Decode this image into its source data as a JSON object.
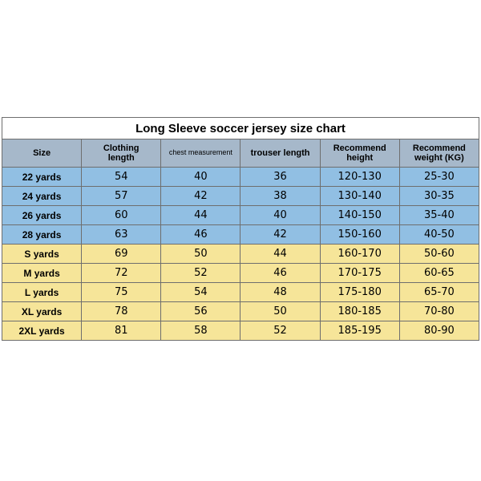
{
  "title": "Long Sleeve soccer jersey size chart",
  "columns": [
    "Size",
    "Clothing length",
    "chest measurement",
    "trouser length",
    "Recommend height",
    "Recommend weight (KG)"
  ],
  "header_bg": "#a6b8ca",
  "header_font_size_main": 11,
  "header_font_size_small": 9,
  "border_color": "#6e6e6e",
  "group_colors": {
    "kids": "#91bfe3",
    "adult": "#f6e599"
  },
  "rows": [
    {
      "group": "kids",
      "cells": [
        "22 yards",
        "54",
        "40",
        "36",
        "120-130",
        "25-30"
      ]
    },
    {
      "group": "kids",
      "cells": [
        "24 yards",
        "57",
        "42",
        "38",
        "130-140",
        "30-35"
      ]
    },
    {
      "group": "kids",
      "cells": [
        "26 yards",
        "60",
        "44",
        "40",
        "140-150",
        "35-40"
      ]
    },
    {
      "group": "kids",
      "cells": [
        "28 yards",
        "63",
        "46",
        "42",
        "150-160",
        "40-50"
      ]
    },
    {
      "group": "adult",
      "cells": [
        "S yards",
        "69",
        "50",
        "44",
        "160-170",
        "50-60"
      ]
    },
    {
      "group": "adult",
      "cells": [
        "M yards",
        "72",
        "52",
        "46",
        "170-175",
        "60-65"
      ]
    },
    {
      "group": "adult",
      "cells": [
        "L yards",
        "75",
        "54",
        "48",
        "175-180",
        "65-70"
      ]
    },
    {
      "group": "adult",
      "cells": [
        "XL yards",
        "78",
        "56",
        "50",
        "180-185",
        "70-80"
      ]
    },
    {
      "group": "adult",
      "cells": [
        "2XL yards",
        "81",
        "58",
        "52",
        "185-195",
        "80-90"
      ]
    }
  ],
  "col_classes": [
    "c-size",
    "c-cloth",
    "c-chest",
    "c-trou",
    "c-rech",
    "c-recw"
  ]
}
